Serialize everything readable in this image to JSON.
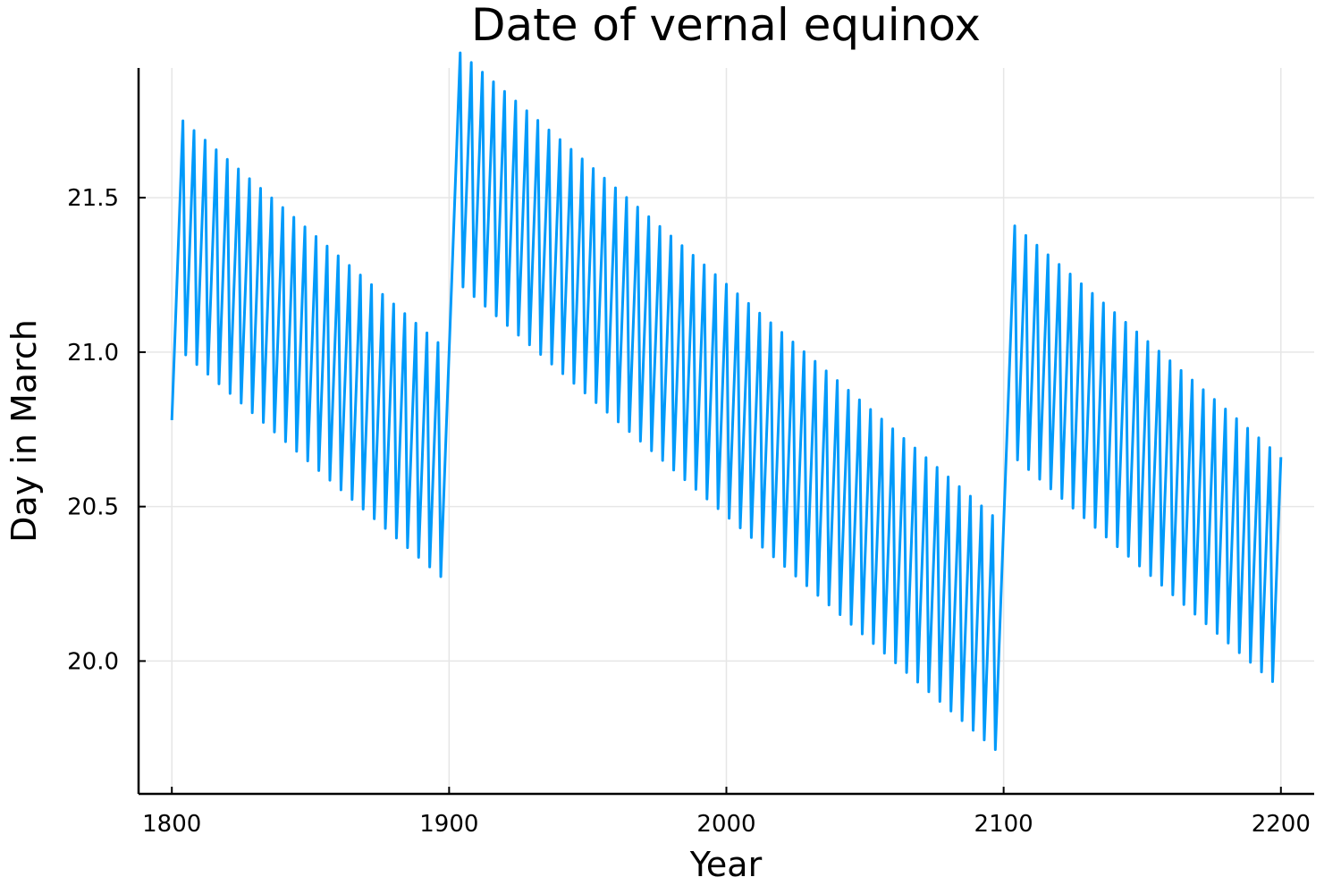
{
  "chart_data": {
    "type": "line",
    "title": "Date of vernal equinox",
    "xlabel": "Year",
    "ylabel": "Day in March",
    "xlim": [
      1788,
      2212
    ],
    "ylim": [
      19.57,
      21.92
    ],
    "x_ticks": [
      1800,
      1900,
      2000,
      2100,
      2200
    ],
    "x_tick_labels": [
      "1800",
      "1900",
      "2000",
      "2100",
      "2200"
    ],
    "y_ticks": [
      20.0,
      20.5,
      21.0,
      21.5
    ],
    "y_tick_labels": [
      "20.0",
      "20.5",
      "21.0",
      "21.5"
    ],
    "grid": true,
    "legend": "none",
    "series": [
      {
        "color": "#009AFA",
        "model": "Gregorian calendar leap-year sawtooth, 1800-2200, sampled yearly",
        "x_start": 1800,
        "x_end": 2200,
        "year_drift_days": 0.2422,
        "drift_per_4yr_cycle_days": -0.0312,
        "anchor_year": 1800,
        "anchor_value": 20.78
      }
    ]
  },
  "colors": {
    "series": "#009AFA",
    "grid": "#E6E6E6",
    "axis": "#000000",
    "background": "#FFFFFF"
  }
}
